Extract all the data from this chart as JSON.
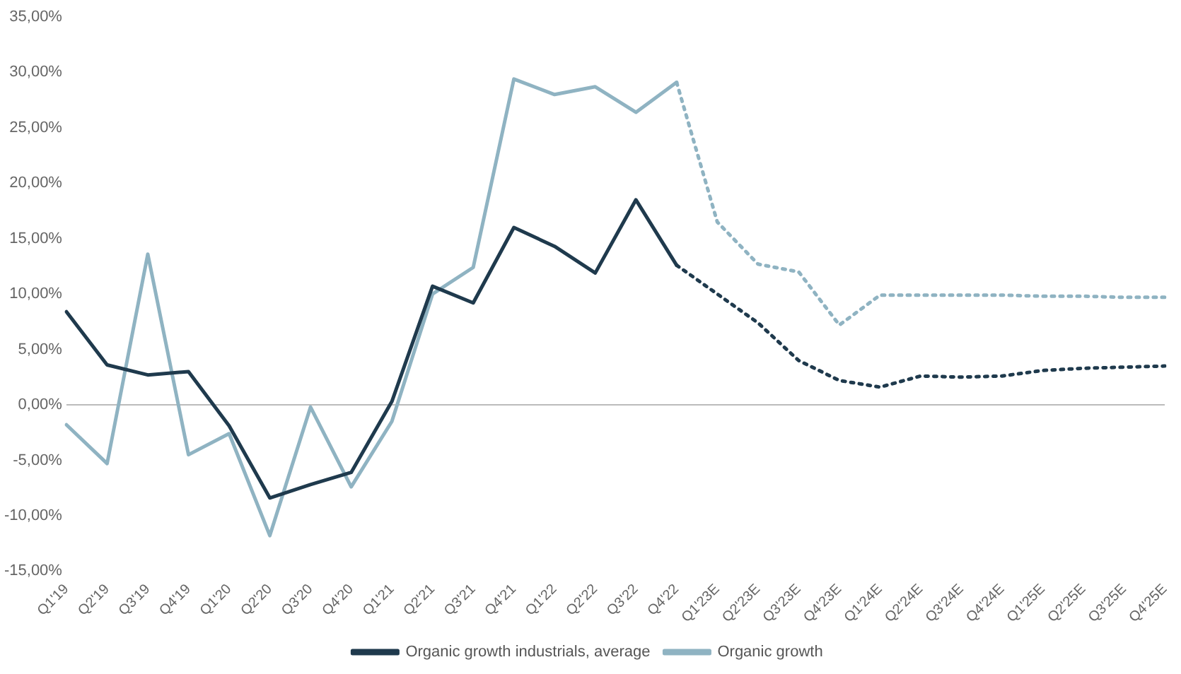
{
  "chart_data": {
    "type": "line",
    "categories": [
      "Q1'19",
      "Q2'19",
      "Q3'19",
      "Q4'19",
      "Q1'20",
      "Q2'20",
      "Q3'20",
      "Q4'20",
      "Q1'21",
      "Q2'21",
      "Q3'21",
      "Q4'21",
      "Q1'22",
      "Q2'22",
      "Q3'22",
      "Q4'22",
      "Q1'23E",
      "Q2'23E",
      "Q3'23E",
      "Q4'23E",
      "Q1'24E",
      "Q2'24E",
      "Q3'24E",
      "Q4'24E",
      "Q1'25E",
      "Q2'25E",
      "Q3'25E",
      "Q4'25E"
    ],
    "series": [
      {
        "name": "Organic growth industrials, average",
        "color": "#1f3a4d",
        "line_style": "solid",
        "values": [
          8.4,
          3.6,
          2.7,
          3.0,
          -1.9,
          -8.4,
          -7.2,
          -6.1,
          0.3,
          10.7,
          9.2,
          16.0,
          14.3,
          11.9,
          18.5,
          12.6,
          null,
          null,
          null,
          null,
          null,
          null,
          null,
          null,
          null,
          null,
          null,
          null
        ]
      },
      {
        "name": "Organic growth",
        "color": "#8fb3c2",
        "line_style": "solid",
        "values": [
          -1.8,
          -5.3,
          13.6,
          -4.5,
          -2.6,
          -11.8,
          -0.2,
          -7.4,
          -1.5,
          10.0,
          12.4,
          29.4,
          28.0,
          28.7,
          26.4,
          29.1,
          null,
          null,
          null,
          null,
          null,
          null,
          null,
          null,
          null,
          null,
          null,
          null
        ]
      },
      {
        "color": "#1f3a4d",
        "line_style": "dotted",
        "values": [
          null,
          null,
          null,
          null,
          null,
          null,
          null,
          null,
          null,
          null,
          null,
          null,
          null,
          null,
          null,
          12.6,
          10.0,
          7.4,
          4.0,
          2.2,
          1.6,
          2.6,
          2.5,
          2.6,
          3.1,
          3.3,
          3.4,
          3.5
        ]
      },
      {
        "color": "#8fb3c2",
        "line_style": "dotted",
        "values": [
          null,
          null,
          null,
          null,
          null,
          null,
          null,
          null,
          null,
          null,
          null,
          null,
          null,
          null,
          null,
          29.1,
          16.5,
          12.7,
          12.0,
          7.2,
          9.9,
          9.9,
          9.9,
          9.9,
          9.8,
          9.8,
          9.7,
          9.7
        ]
      }
    ],
    "ylim": [
      -15,
      35
    ],
    "yticks": [
      {
        "value": -15,
        "label": "-15,00%"
      },
      {
        "value": -10,
        "label": "-10,00%"
      },
      {
        "value": -5,
        "label": "-5,00%"
      },
      {
        "value": 0,
        "label": "0,00%"
      },
      {
        "value": 5,
        "label": "5,00%"
      },
      {
        "value": 10,
        "label": "10,00%"
      },
      {
        "value": 15,
        "label": "15,00%"
      },
      {
        "value": 20,
        "label": "20,00%"
      },
      {
        "value": 25,
        "label": "25,00%"
      },
      {
        "value": 30,
        "label": "30,00%"
      },
      {
        "value": 35,
        "label": "35,00%"
      }
    ],
    "ref_lines": [
      {
        "axis": "y",
        "value": 0,
        "color": "#bbbbbb",
        "line_style": "solid"
      }
    ],
    "grid": false,
    "legend": "bottom",
    "marker": "none"
  }
}
